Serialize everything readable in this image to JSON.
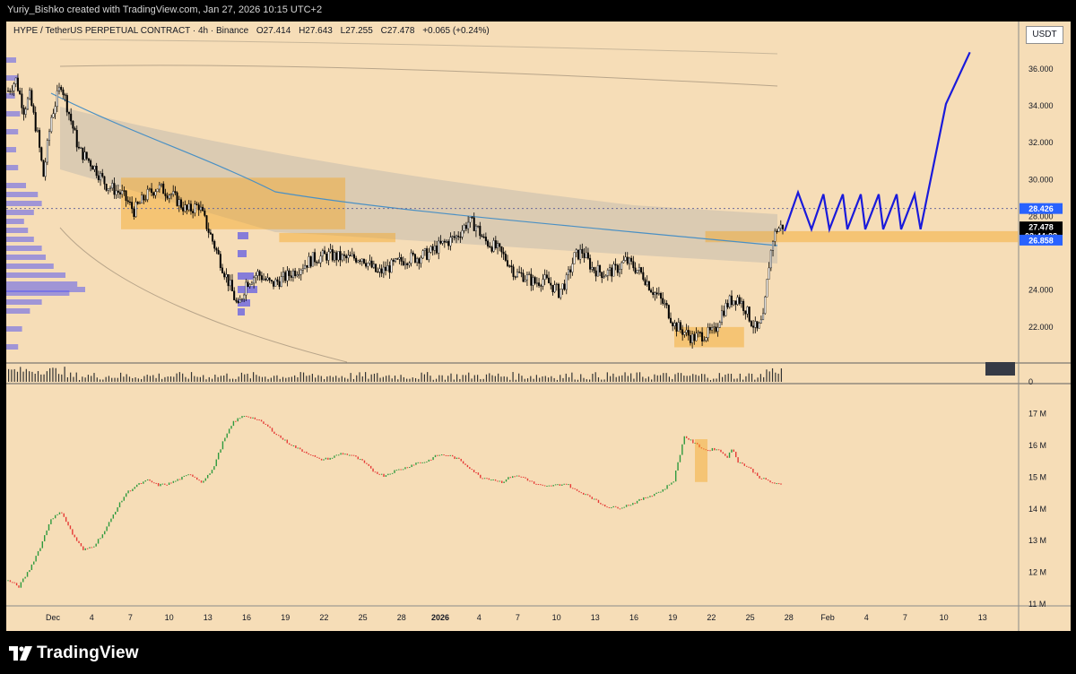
{
  "header": {
    "creator_text": "Yuriy_Bishko created with TradingView.com, Jan 27, 2026 10:15 UTC+2"
  },
  "legend": {
    "symbol": "HYPE / TetherUS PERPETUAL CONTRACT · 4h · Binance",
    "open": "O27.414",
    "high": "H27.643",
    "low": "L27.255",
    "close": "C27.478",
    "change": "+0.065 (+0.24%)"
  },
  "price_axis": {
    "unit": "USDT",
    "ticks": [
      "36.000",
      "34.000",
      "32.000",
      "30.000",
      "28.000",
      "24.000",
      "22.000"
    ],
    "tick_values": [
      36,
      34,
      32,
      30,
      28,
      24,
      22
    ],
    "badges": [
      {
        "label": "28.426",
        "value": 28.426,
        "color": "#2962ff"
      },
      {
        "label": "27.478",
        "value": 27.478,
        "color": "#000000"
      },
      {
        "label": "03:44:28",
        "value": 27.0,
        "color": "#000000"
      },
      {
        "label": "26.858",
        "value": 26.858,
        "color": "#2962ff"
      }
    ]
  },
  "volume_axis": {
    "label": "0"
  },
  "indicator_axis": {
    "ticks": [
      "17 M",
      "16 M",
      "15 M",
      "14 M",
      "13 M",
      "12 M",
      "11 M"
    ],
    "tick_values": [
      17,
      16,
      15,
      14,
      13,
      12,
      11
    ]
  },
  "time_axis": {
    "labels": [
      "Dec",
      "4",
      "7",
      "10",
      "13",
      "16",
      "19",
      "22",
      "25",
      "28",
      "2026",
      "4",
      "7",
      "10",
      "13",
      "16",
      "19",
      "22",
      "25",
      "28",
      "Feb",
      "4",
      "7",
      "10",
      "13"
    ],
    "bold": [
      "2026"
    ]
  },
  "colors": {
    "background": "#f6ddb7",
    "up": "#26a69a",
    "down": "#ef5350",
    "zone": "#f5a623",
    "projection": "#1a1adb",
    "vwap": "#4a90c4"
  },
  "chart_data": {
    "type": "candlestick",
    "price_path": [
      [
        0,
        34.8
      ],
      [
        8,
        35.4
      ],
      [
        16,
        33.8
      ],
      [
        22,
        34.5
      ],
      [
        30,
        32.4
      ],
      [
        36,
        30.2
      ],
      [
        44,
        33.4
      ],
      [
        54,
        35.2
      ],
      [
        62,
        33.6
      ],
      [
        72,
        31.6
      ],
      [
        86,
        30.8
      ],
      [
        100,
        29.7
      ],
      [
        116,
        29.2
      ],
      [
        128,
        28.3
      ],
      [
        140,
        29.1
      ],
      [
        152,
        29.6
      ],
      [
        166,
        29.2
      ],
      [
        182,
        28.3
      ],
      [
        194,
        28.6
      ],
      [
        210,
        26.4
      ],
      [
        220,
        25.0
      ],
      [
        226,
        24.2
      ],
      [
        234,
        23.0
      ],
      [
        242,
        24.4
      ],
      [
        254,
        24.9
      ],
      [
        268,
        24.3
      ],
      [
        282,
        24.7
      ],
      [
        296,
        25.2
      ],
      [
        310,
        25.7
      ],
      [
        326,
        25.9
      ],
      [
        344,
        25.7
      ],
      [
        360,
        25.8
      ],
      [
        376,
        24.9
      ],
      [
        390,
        25.3
      ],
      [
        404,
        25.7
      ],
      [
        418,
        25.8
      ],
      [
        428,
        26.0
      ],
      [
        436,
        26.3
      ],
      [
        446,
        26.6
      ],
      [
        456,
        26.9
      ],
      [
        468,
        27.7
      ],
      [
        476,
        27.5
      ],
      [
        484,
        26.7
      ],
      [
        496,
        26.3
      ],
      [
        508,
        25.6
      ],
      [
        516,
        24.9
      ],
      [
        524,
        24.8
      ],
      [
        536,
        24.4
      ],
      [
        544,
        24.6
      ],
      [
        552,
        24.3
      ],
      [
        560,
        23.9
      ],
      [
        568,
        24.5
      ],
      [
        576,
        25.8
      ],
      [
        584,
        26.1
      ],
      [
        594,
        25.2
      ],
      [
        606,
        24.9
      ],
      [
        618,
        25.1
      ],
      [
        628,
        25.6
      ],
      [
        636,
        25.3
      ],
      [
        646,
        24.8
      ],
      [
        654,
        24.1
      ],
      [
        662,
        23.6
      ],
      [
        670,
        23.0
      ],
      [
        678,
        22.1
      ],
      [
        686,
        21.8
      ],
      [
        696,
        21.4
      ],
      [
        708,
        21.6
      ],
      [
        718,
        21.7
      ],
      [
        726,
        22.8
      ],
      [
        734,
        23.4
      ],
      [
        742,
        23.6
      ],
      [
        750,
        23.0
      ],
      [
        756,
        22.3
      ],
      [
        762,
        21.8
      ],
      [
        768,
        22.4
      ],
      [
        774,
        25.4
      ],
      [
        778,
        26.8
      ],
      [
        782,
        27.3
      ],
      [
        788,
        27.48
      ]
    ],
    "projection": [
      [
        0,
        27.2
      ],
      [
        9,
        29.3
      ],
      [
        18,
        27.3
      ],
      [
        26,
        29.2
      ],
      [
        30,
        27.3
      ],
      [
        39,
        29.2
      ],
      [
        42,
        27.3
      ],
      [
        51,
        29.2
      ],
      [
        54,
        27.3
      ],
      [
        63,
        29.2
      ],
      [
        66,
        27.3
      ],
      [
        75,
        29.2
      ],
      [
        78,
        27.3
      ],
      [
        87,
        29.2
      ],
      [
        91,
        27.3
      ],
      [
        108,
        34.1
      ],
      [
        124,
        36.9
      ]
    ],
    "zones": [
      {
        "label": "resistance",
        "x0": 0.0,
        "x1": 0.22,
        "top": 30.1,
        "bottom": 27.3
      },
      {
        "label": "mid",
        "x0": 0.35,
        "x1": 0.5,
        "top": 27.1,
        "bottom": 26.6
      },
      {
        "label": "current",
        "x0": 0.9,
        "x1": 1.0,
        "top": 27.2,
        "bottom": 26.6
      },
      {
        "label": "support",
        "x0": 0.86,
        "x1": 0.95,
        "top": 22.0,
        "bottom": 20.9
      }
    ],
    "indicator_path": [
      [
        0,
        11.75
      ],
      [
        10,
        11.55
      ],
      [
        20,
        12.1
      ],
      [
        30,
        12.8
      ],
      [
        40,
        13.7
      ],
      [
        50,
        13.9
      ],
      [
        60,
        13.2
      ],
      [
        70,
        12.7
      ],
      [
        80,
        12.85
      ],
      [
        90,
        13.3
      ],
      [
        100,
        13.95
      ],
      [
        110,
        14.5
      ],
      [
        120,
        14.75
      ],
      [
        130,
        14.9
      ],
      [
        140,
        14.75
      ],
      [
        150,
        14.8
      ],
      [
        160,
        14.95
      ],
      [
        170,
        15.1
      ],
      [
        180,
        14.85
      ],
      [
        190,
        15.2
      ],
      [
        200,
        16.1
      ],
      [
        210,
        16.75
      ],
      [
        220,
        16.95
      ],
      [
        230,
        16.85
      ],
      [
        240,
        16.65
      ],
      [
        250,
        16.35
      ],
      [
        260,
        16.1
      ],
      [
        270,
        15.9
      ],
      [
        280,
        15.75
      ],
      [
        290,
        15.55
      ],
      [
        300,
        15.6
      ],
      [
        310,
        15.75
      ],
      [
        320,
        15.7
      ],
      [
        330,
        15.5
      ],
      [
        340,
        15.2
      ],
      [
        350,
        15.05
      ],
      [
        360,
        15.2
      ],
      [
        370,
        15.3
      ],
      [
        380,
        15.45
      ],
      [
        390,
        15.5
      ],
      [
        400,
        15.7
      ],
      [
        410,
        15.7
      ],
      [
        420,
        15.55
      ],
      [
        430,
        15.3
      ],
      [
        440,
        15.0
      ],
      [
        450,
        14.95
      ],
      [
        460,
        14.85
      ],
      [
        470,
        15.05
      ],
      [
        480,
        15.0
      ],
      [
        490,
        14.8
      ],
      [
        500,
        14.7
      ],
      [
        510,
        14.75
      ],
      [
        520,
        14.8
      ],
      [
        530,
        14.55
      ],
      [
        540,
        14.45
      ],
      [
        550,
        14.2
      ],
      [
        560,
        14.05
      ],
      [
        570,
        14.05
      ],
      [
        580,
        14.15
      ],
      [
        590,
        14.3
      ],
      [
        600,
        14.45
      ],
      [
        610,
        14.6
      ],
      [
        620,
        14.9
      ],
      [
        625,
        15.6
      ],
      [
        630,
        16.3
      ],
      [
        640,
        16.05
      ],
      [
        650,
        15.85
      ],
      [
        660,
        15.9
      ],
      [
        670,
        15.65
      ],
      [
        675,
        15.9
      ],
      [
        680,
        15.5
      ],
      [
        690,
        15.3
      ],
      [
        700,
        15.0
      ],
      [
        710,
        14.85
      ],
      [
        720,
        14.75
      ]
    ],
    "indicator_ylim": [
      11,
      17.5
    ],
    "price_ylim": [
      20,
      37.5
    ]
  }
}
